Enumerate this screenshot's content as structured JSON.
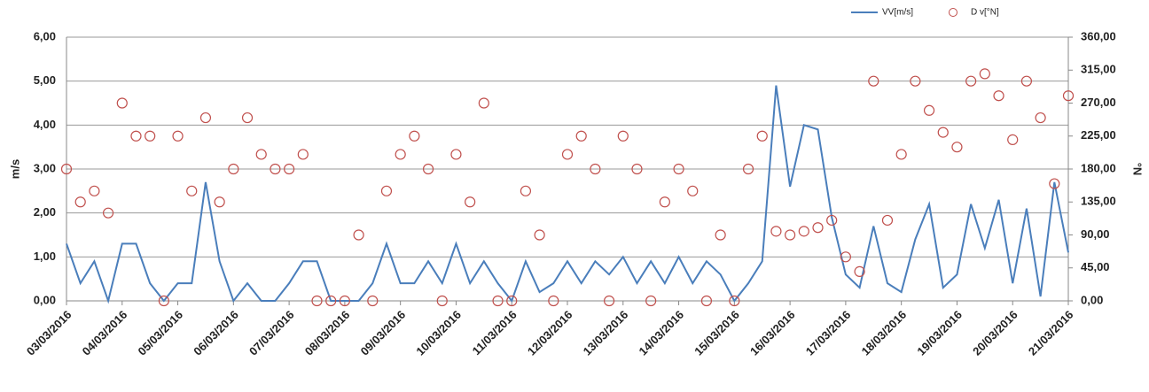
{
  "chart_data": {
    "type": "line",
    "ylabel": "m/s",
    "y2label": "°N",
    "x": [
      0,
      0.25,
      0.5,
      0.75,
      1,
      1.25,
      1.5,
      1.75,
      2,
      2.25,
      2.5,
      2.75,
      3,
      3.25,
      3.5,
      3.75,
      4,
      4.25,
      4.5,
      4.75,
      5,
      5.25,
      5.5,
      5.75,
      6,
      6.25,
      6.5,
      6.75,
      7,
      7.25,
      7.5,
      7.75,
      8,
      8.25,
      8.5,
      8.75,
      9,
      9.25,
      9.5,
      9.75,
      10,
      10.25,
      10.5,
      10.75,
      11,
      11.25,
      11.5,
      11.75,
      12,
      12.25,
      12.5,
      12.75,
      13,
      13.25,
      13.5,
      13.75,
      14,
      14.25,
      14.5,
      14.75,
      15,
      15.25,
      15.5,
      15.75,
      16,
      16.25,
      16.5,
      16.75,
      17,
      17.25,
      17.5,
      17.75,
      18
    ],
    "xlim": [
      0,
      18
    ],
    "xticks": [
      {
        "value": 0,
        "label": "03/03/2016"
      },
      {
        "value": 1,
        "label": "04/03/2016"
      },
      {
        "value": 2,
        "label": "05/03/2016"
      },
      {
        "value": 3,
        "label": "06/03/2016"
      },
      {
        "value": 4,
        "label": "07/03/2016"
      },
      {
        "value": 5,
        "label": "08/03/2016"
      },
      {
        "value": 6,
        "label": "09/03/2016"
      },
      {
        "value": 7,
        "label": "10/03/2016"
      },
      {
        "value": 8,
        "label": "11/03/2016"
      },
      {
        "value": 9,
        "label": "12/03/2016"
      },
      {
        "value": 10,
        "label": "13/03/2016"
      },
      {
        "value": 11,
        "label": "14/03/2016"
      },
      {
        "value": 12,
        "label": "15/03/2016"
      },
      {
        "value": 13,
        "label": "16/03/2016"
      },
      {
        "value": 14,
        "label": "17/03/2016"
      },
      {
        "value": 15,
        "label": "18/03/2016"
      },
      {
        "value": 16,
        "label": "19/03/2016"
      },
      {
        "value": 17,
        "label": "20/03/2016"
      },
      {
        "value": 18,
        "label": "21/03/2016"
      }
    ],
    "ylim": [
      0,
      6
    ],
    "yticks": [
      {
        "value": 0,
        "label": "0,00"
      },
      {
        "value": 1,
        "label": "1,00"
      },
      {
        "value": 2,
        "label": "2,00"
      },
      {
        "value": 3,
        "label": "3,00"
      },
      {
        "value": 4,
        "label": "4,00"
      },
      {
        "value": 5,
        "label": "5,00"
      },
      {
        "value": 6,
        "label": "6,00"
      }
    ],
    "y2lim": [
      0,
      360
    ],
    "y2ticks": [
      {
        "value": 0,
        "label": "0,00"
      },
      {
        "value": 45,
        "label": "45,00"
      },
      {
        "value": 90,
        "label": "90,00"
      },
      {
        "value": 135,
        "label": "135,00"
      },
      {
        "value": 180,
        "label": "180,00"
      },
      {
        "value": 225,
        "label": "225,00"
      },
      {
        "value": 270,
        "label": "270,00"
      },
      {
        "value": 315,
        "label": "315,00"
      },
      {
        "value": 360,
        "label": "360,00"
      }
    ],
    "grid": true,
    "series": [
      {
        "name": "VV[m/s]",
        "type": "line",
        "color": "#4a7ebb",
        "axis": "y",
        "values": [
          1.3,
          0.4,
          0.9,
          0,
          1.3,
          1.3,
          0.4,
          0,
          0.4,
          0.4,
          2.7,
          0.9,
          0,
          0.4,
          0,
          0,
          0.4,
          0.9,
          0.9,
          0,
          0,
          0,
          0.4,
          1.3,
          0.4,
          0.4,
          0.9,
          0.4,
          1.3,
          0.4,
          0.9,
          0.4,
          0,
          0.9,
          0.2,
          0.4,
          0.9,
          0.4,
          0.9,
          0.6,
          1.0,
          0.4,
          0.9,
          0.4,
          1.0,
          0.4,
          0.9,
          0.6,
          0,
          0.4,
          0.9,
          4.9,
          2.6,
          4.0,
          3.9,
          1.9,
          0.6,
          0.3,
          1.7,
          0.4,
          0.2,
          1.4,
          2.2,
          0.3,
          0.6,
          2.2,
          1.2,
          2.3,
          0.4,
          2.1,
          0.1,
          2.7,
          1.1
        ]
      },
      {
        "name": "D v[°N]",
        "type": "scatter",
        "color": "#c0504d",
        "axis": "y2",
        "values": [
          180,
          135,
          150,
          120,
          270,
          225,
          225,
          0,
          225,
          150,
          250,
          135,
          180,
          250,
          200,
          180,
          180,
          200,
          0,
          0,
          0,
          90,
          0,
          150,
          200,
          225,
          180,
          0,
          200,
          135,
          270,
          0,
          0,
          150,
          90,
          0,
          200,
          225,
          180,
          0,
          225,
          180,
          0,
          135,
          180,
          150,
          0,
          90,
          0,
          180,
          225,
          95,
          90,
          95,
          100,
          110,
          60,
          40,
          300,
          110,
          200,
          300,
          260,
          230,
          210,
          300,
          310,
          280,
          220,
          300,
          250,
          160,
          280
        ]
      }
    ]
  }
}
